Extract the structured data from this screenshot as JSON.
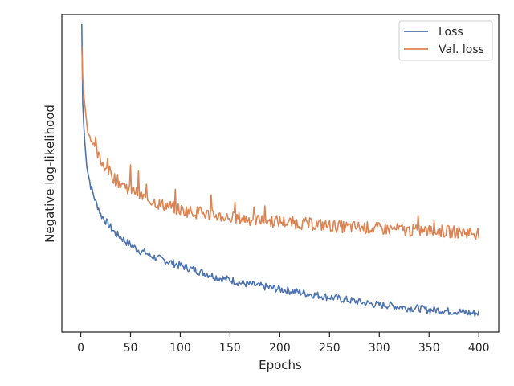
{
  "chart_data": {
    "type": "line",
    "title": "",
    "xlabel": "Epochs",
    "ylabel": "Negative log-likelihood",
    "xlim": [
      -19,
      420
    ],
    "xticks": [
      0,
      50,
      100,
      150,
      200,
      250,
      300,
      350,
      400
    ],
    "xtick_labels": [
      "0",
      "50",
      "100",
      "150",
      "200",
      "250",
      "300",
      "350",
      "400"
    ],
    "ylim": [
      0,
      1
    ],
    "yticks_visible": false,
    "grid": false,
    "legend_position": "top-right",
    "series": [
      {
        "name": "Loss",
        "color": "#4c72b0",
        "x": [
          1,
          2,
          3,
          4,
          5,
          6,
          8,
          10,
          12,
          15,
          18,
          20,
          25,
          30,
          35,
          40,
          45,
          50,
          55,
          60,
          65,
          70,
          75,
          80,
          85,
          90,
          95,
          100,
          110,
          120,
          130,
          140,
          150,
          160,
          170,
          180,
          190,
          200,
          210,
          220,
          230,
          240,
          250,
          260,
          270,
          280,
          290,
          300,
          310,
          320,
          330,
          340,
          350,
          360,
          370,
          380,
          390,
          400
        ],
        "y": [
          0.97,
          0.72,
          0.65,
          0.6,
          0.56,
          0.53,
          0.49,
          0.46,
          0.44,
          0.41,
          0.39,
          0.37,
          0.35,
          0.33,
          0.31,
          0.3,
          0.285,
          0.275,
          0.265,
          0.255,
          0.25,
          0.24,
          0.235,
          0.23,
          0.225,
          0.22,
          0.215,
          0.21,
          0.2,
          0.19,
          0.18,
          0.17,
          0.165,
          0.155,
          0.15,
          0.145,
          0.14,
          0.135,
          0.13,
          0.125,
          0.12,
          0.115,
          0.11,
          0.105,
          0.1,
          0.095,
          0.09,
          0.085,
          0.085,
          0.08,
          0.075,
          0.075,
          0.07,
          0.07,
          0.065,
          0.065,
          0.06,
          0.06
        ]
      },
      {
        "name": "Val. loss",
        "color": "#dd8452",
        "x": [
          1,
          2,
          3,
          4,
          5,
          6,
          8,
          10,
          12,
          15,
          18,
          20,
          25,
          30,
          35,
          40,
          45,
          50,
          55,
          60,
          65,
          70,
          75,
          80,
          85,
          90,
          95,
          100,
          110,
          120,
          130,
          140,
          150,
          160,
          170,
          180,
          190,
          200,
          210,
          220,
          230,
          240,
          250,
          260,
          270,
          280,
          290,
          300,
          310,
          320,
          330,
          340,
          350,
          360,
          370,
          380,
          390,
          400
        ],
        "y": [
          0.9,
          0.8,
          0.75,
          0.71,
          0.68,
          0.66,
          0.63,
          0.61,
          0.59,
          0.57,
          0.55,
          0.54,
          0.52,
          0.5,
          0.48,
          0.47,
          0.46,
          0.45,
          0.44,
          0.43,
          0.42,
          0.415,
          0.41,
          0.4,
          0.4,
          0.395,
          0.39,
          0.385,
          0.38,
          0.375,
          0.37,
          0.365,
          0.36,
          0.358,
          0.355,
          0.352,
          0.35,
          0.348,
          0.345,
          0.343,
          0.34,
          0.338,
          0.335,
          0.333,
          0.33,
          0.33,
          0.328,
          0.325,
          0.325,
          0.323,
          0.32,
          0.32,
          0.318,
          0.318,
          0.316,
          0.315,
          0.314,
          0.312
        ]
      }
    ]
  }
}
